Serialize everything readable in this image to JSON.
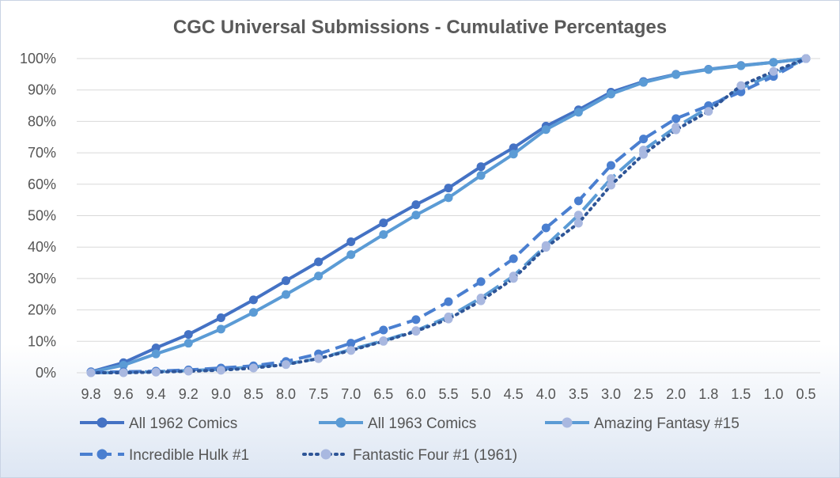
{
  "chart_data": {
    "type": "line",
    "title": "CGC Universal Submissions - Cumulative Percentages",
    "xlabel": "",
    "ylabel": "",
    "categories": [
      "9.8",
      "9.6",
      "9.4",
      "9.2",
      "9.0",
      "8.5",
      "8.0",
      "7.5",
      "7.0",
      "6.5",
      "6.0",
      "5.5",
      "5.0",
      "4.5",
      "4.0",
      "3.5",
      "3.0",
      "2.5",
      "2.0",
      "1.8",
      "1.5",
      "1.0",
      "0.5"
    ],
    "yticks": [
      "0%",
      "10%",
      "20%",
      "30%",
      "40%",
      "50%",
      "60%",
      "70%",
      "80%",
      "90%",
      "100%"
    ],
    "ylim": [
      0,
      100
    ],
    "grid": true,
    "legend_position": "bottom",
    "series": [
      {
        "name": "All 1962 Comics",
        "color": "#4472c4",
        "dash": "solid",
        "values": [
          0.3,
          3.2,
          7.9,
          12.2,
          17.5,
          23.2,
          29.3,
          35.3,
          41.7,
          47.7,
          53.5,
          58.8,
          65.6,
          71.6,
          78.5,
          83.7,
          89.3,
          92.7,
          95.0,
          96.6,
          97.8,
          98.8,
          100
        ]
      },
      {
        "name": "All 1963 Comics",
        "color": "#5b9bd5",
        "dash": "solid",
        "values": [
          0.2,
          2.4,
          6.0,
          9.4,
          13.9,
          19.2,
          24.9,
          30.8,
          37.6,
          44.0,
          50.2,
          55.7,
          62.8,
          69.6,
          77.4,
          82.9,
          88.7,
          92.4,
          94.9,
          96.5,
          97.7,
          98.8,
          100
        ]
      },
      {
        "name": "Amazing Fantasy #15",
        "color": "#5b9bd5",
        "dash": "longdash",
        "values": [
          0.0,
          0.1,
          0.4,
          0.7,
          1.1,
          1.9,
          2.8,
          4.5,
          7.4,
          10.2,
          13.4,
          17.8,
          23.8,
          30.8,
          40.5,
          50.2,
          61.8,
          70.9,
          78.2,
          84.4,
          90.6,
          95.0,
          100
        ]
      },
      {
        "name": "Incredible Hulk #1",
        "color": "#4a7fd0",
        "dash": "dash",
        "values": [
          0.2,
          0.3,
          0.5,
          0.9,
          1.5,
          2.2,
          3.6,
          6.0,
          9.4,
          13.6,
          16.9,
          22.6,
          29.0,
          36.3,
          46.1,
          54.7,
          66.0,
          74.4,
          80.9,
          85.0,
          89.4,
          94.3,
          100
        ]
      },
      {
        "name": "Fantastic Four #1 (1961)",
        "color": "#2e5597",
        "dash": "dot",
        "values": [
          0.0,
          0.0,
          0.2,
          0.5,
          0.8,
          1.5,
          2.6,
          4.5,
          7.1,
          10.0,
          13.2,
          17.1,
          22.9,
          30.0,
          39.9,
          47.6,
          59.7,
          69.5,
          77.3,
          83.2,
          91.4,
          95.9,
          100
        ]
      }
    ]
  }
}
